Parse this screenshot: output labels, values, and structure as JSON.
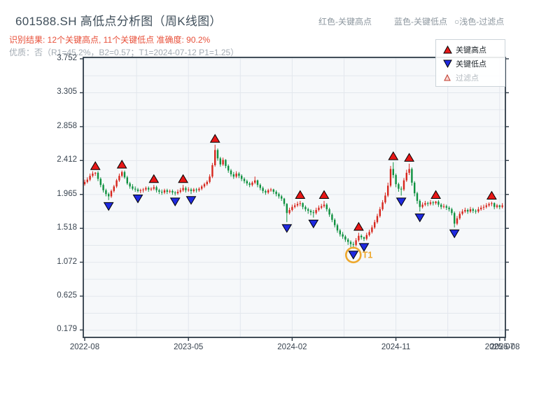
{
  "header": {
    "title": "601588.SH 高低点分析图（周K线图）",
    "result_line": "识别结果: 12个关键高点, 11个关键低点  准确度: 90.2%",
    "quality_line": "优质：否（R1=45.2%，B2=0.57；T1=2024-07-12 P1=1.25）",
    "top_legend": [
      {
        "label": "红色-关键高点"
      },
      {
        "label": "蓝色-关键低点"
      },
      {
        "label": "○浅色-过滤点"
      }
    ]
  },
  "legend_box": {
    "items": [
      {
        "icon": "triangle-up-icon",
        "label": "关键高点",
        "muted": false
      },
      {
        "icon": "triangle-down-icon",
        "label": "关键低点",
        "muted": false
      },
      {
        "icon": "triangle-hollow-icon",
        "label": "过滤点",
        "muted": true
      }
    ]
  },
  "colors": {
    "up": "#d7261d",
    "down": "#0f9140",
    "key_high": "#e81717",
    "key_low": "#1f2ae0",
    "marker_edge": "#000000",
    "filtered_fill": "#f6d6d2",
    "filtered_edge": "#c0392b",
    "annotation": "#eda82e",
    "grid": "#e3e7ed",
    "plot_bg": "#f6f8fa",
    "spine": "#2e3b47",
    "tick_label": "#38434f"
  },
  "chart_data": {
    "type": "candlestick",
    "title": "601588.SH 高低点分析图（周K线图）",
    "frequency": "weekly",
    "start_date": "2022-08-05",
    "ylim": [
      0.08,
      3.77
    ],
    "y_ticks": [
      3.752,
      3.305,
      2.858,
      2.412,
      1.965,
      1.518,
      1.072,
      0.625,
      0.179
    ],
    "x_ticks": [
      {
        "label": "2022-08",
        "week": 0
      },
      {
        "label": "2023-05",
        "week": 39
      },
      {
        "label": "2024-02",
        "week": 78
      },
      {
        "label": "2024-11",
        "week": 117
      },
      {
        "label": "2025-07",
        "week": 156
      },
      {
        "label": "2025-08",
        "week": 158
      }
    ],
    "grid_weeks": [
      19.5,
      39,
      58.5,
      78,
      97.5,
      117,
      136.5,
      156
    ],
    "key_high_weeks": [
      4,
      14,
      26,
      37,
      49,
      81,
      90,
      103,
      116,
      122,
      132,
      153
    ],
    "key_low_weeks": [
      9,
      20,
      34,
      40,
      76,
      86,
      101,
      105,
      119,
      126,
      139
    ],
    "annotation": {
      "label": "T1",
      "week": 101,
      "price": 1.25,
      "date": "2024-07-12"
    },
    "candles": [
      [
        2.1,
        2.16,
        2.08,
        2.13
      ],
      [
        2.13,
        2.19,
        2.11,
        2.16
      ],
      [
        2.16,
        2.24,
        2.14,
        2.21
      ],
      [
        2.21,
        2.27,
        2.19,
        2.24
      ],
      [
        2.24,
        2.26,
        2.21,
        2.25
      ],
      [
        2.25,
        2.27,
        2.14,
        2.17
      ],
      [
        2.17,
        2.19,
        2.06,
        2.09
      ],
      [
        2.09,
        2.11,
        1.99,
        2.02
      ],
      [
        2.02,
        2.04,
        1.94,
        1.97
      ],
      [
        1.97,
        1.99,
        1.89,
        1.94
      ],
      [
        1.94,
        2.03,
        1.92,
        2.01
      ],
      [
        2.01,
        2.09,
        1.99,
        2.07
      ],
      [
        2.07,
        2.17,
        2.05,
        2.15
      ],
      [
        2.15,
        2.24,
        2.13,
        2.21
      ],
      [
        2.21,
        2.28,
        2.19,
        2.26
      ],
      [
        2.26,
        2.28,
        2.17,
        2.19
      ],
      [
        2.19,
        2.21,
        2.09,
        2.11
      ],
      [
        2.11,
        2.13,
        2.04,
        2.07
      ],
      [
        2.07,
        2.1,
        2.02,
        2.04
      ],
      [
        2.04,
        2.07,
        2.0,
        2.03
      ],
      [
        2.03,
        2.05,
        1.99,
        2.01
      ],
      [
        2.01,
        2.04,
        1.98,
        2.02
      ],
      [
        2.02,
        2.05,
        1.99,
        2.03
      ],
      [
        2.03,
        2.07,
        2.01,
        2.05
      ],
      [
        2.05,
        2.07,
        2.0,
        2.03
      ],
      [
        2.03,
        2.06,
        2.01,
        2.04
      ],
      [
        2.04,
        2.09,
        2.02,
        2.06
      ],
      [
        2.06,
        2.08,
        1.99,
        2.02
      ],
      [
        2.02,
        2.04,
        1.97,
        2.0
      ],
      [
        2.0,
        2.03,
        1.96,
        1.99
      ],
      [
        1.99,
        2.04,
        1.97,
        2.02
      ],
      [
        2.02,
        2.04,
        1.97,
        2.0
      ],
      [
        2.0,
        2.03,
        1.98,
        2.01
      ],
      [
        2.01,
        2.03,
        1.96,
        1.99
      ],
      [
        1.99,
        2.01,
        1.95,
        1.98
      ],
      [
        1.98,
        2.03,
        1.96,
        2.0
      ],
      [
        2.0,
        2.05,
        1.98,
        2.02
      ],
      [
        2.02,
        2.09,
        2.0,
        2.05
      ],
      [
        2.05,
        2.07,
        1.99,
        2.02
      ],
      [
        2.02,
        2.06,
        2.0,
        2.03
      ],
      [
        2.03,
        2.05,
        1.97,
        2.01
      ],
      [
        2.01,
        2.05,
        1.99,
        2.03
      ],
      [
        2.03,
        2.05,
        1.99,
        2.02
      ],
      [
        2.02,
        2.06,
        2.0,
        2.04
      ],
      [
        2.04,
        2.09,
        2.02,
        2.07
      ],
      [
        2.07,
        2.12,
        2.05,
        2.1
      ],
      [
        2.1,
        2.15,
        2.08,
        2.13
      ],
      [
        2.13,
        2.23,
        2.11,
        2.2
      ],
      [
        2.2,
        2.38,
        2.18,
        2.35
      ],
      [
        2.35,
        2.62,
        2.33,
        2.55
      ],
      [
        2.55,
        2.57,
        2.41,
        2.44
      ],
      [
        2.44,
        2.46,
        2.33,
        2.36
      ],
      [
        2.36,
        2.45,
        2.34,
        2.42
      ],
      [
        2.42,
        2.43,
        2.31,
        2.34
      ],
      [
        2.34,
        2.36,
        2.25,
        2.28
      ],
      [
        2.28,
        2.3,
        2.2,
        2.23
      ],
      [
        2.23,
        2.26,
        2.17,
        2.2
      ],
      [
        2.2,
        2.27,
        2.18,
        2.24
      ],
      [
        2.24,
        2.26,
        2.18,
        2.21
      ],
      [
        2.21,
        2.23,
        2.14,
        2.17
      ],
      [
        2.17,
        2.19,
        2.11,
        2.14
      ],
      [
        2.14,
        2.16,
        2.08,
        2.11
      ],
      [
        2.11,
        2.13,
        2.06,
        2.09
      ],
      [
        2.09,
        2.14,
        2.07,
        2.12
      ],
      [
        2.12,
        2.2,
        2.1,
        2.15
      ],
      [
        2.15,
        2.16,
        2.06,
        2.09
      ],
      [
        2.09,
        2.11,
        2.02,
        2.05
      ],
      [
        2.05,
        2.07,
        1.98,
        2.01
      ],
      [
        2.01,
        2.03,
        1.96,
        1.99
      ],
      [
        1.99,
        2.04,
        1.97,
        2.02
      ],
      [
        2.02,
        2.05,
        2.0,
        2.03
      ],
      [
        2.03,
        2.04,
        1.97,
        2.0
      ],
      [
        2.0,
        2.02,
        1.94,
        1.97
      ],
      [
        1.97,
        1.99,
        1.91,
        1.94
      ],
      [
        1.94,
        1.96,
        1.88,
        1.91
      ],
      [
        1.91,
        1.92,
        1.81,
        1.84
      ],
      [
        1.84,
        1.85,
        1.6,
        1.72
      ],
      [
        1.72,
        1.79,
        1.7,
        1.76
      ],
      [
        1.76,
        1.83,
        1.74,
        1.8
      ],
      [
        1.8,
        1.85,
        1.78,
        1.82
      ],
      [
        1.82,
        1.87,
        1.8,
        1.84
      ],
      [
        1.84,
        1.88,
        1.81,
        1.85
      ],
      [
        1.85,
        1.86,
        1.77,
        1.8
      ],
      [
        1.8,
        1.82,
        1.74,
        1.77
      ],
      [
        1.77,
        1.79,
        1.71,
        1.75
      ],
      [
        1.75,
        1.77,
        1.69,
        1.73
      ],
      [
        1.73,
        1.76,
        1.66,
        1.72
      ],
      [
        1.72,
        1.79,
        1.7,
        1.76
      ],
      [
        1.76,
        1.82,
        1.74,
        1.79
      ],
      [
        1.79,
        1.84,
        1.77,
        1.81
      ],
      [
        1.81,
        1.88,
        1.79,
        1.83
      ],
      [
        1.83,
        1.85,
        1.74,
        1.77
      ],
      [
        1.77,
        1.79,
        1.67,
        1.7
      ],
      [
        1.7,
        1.72,
        1.6,
        1.63
      ],
      [
        1.63,
        1.65,
        1.53,
        1.56
      ],
      [
        1.56,
        1.58,
        1.46,
        1.49
      ],
      [
        1.49,
        1.51,
        1.41,
        1.44
      ],
      [
        1.44,
        1.47,
        1.38,
        1.41
      ],
      [
        1.41,
        1.43,
        1.34,
        1.37
      ],
      [
        1.37,
        1.39,
        1.3,
        1.34
      ],
      [
        1.34,
        1.36,
        1.27,
        1.31
      ],
      [
        1.31,
        1.34,
        1.25,
        1.3
      ],
      [
        1.3,
        1.39,
        1.28,
        1.36
      ],
      [
        1.36,
        1.46,
        1.34,
        1.42
      ],
      [
        1.42,
        1.44,
        1.37,
        1.4
      ],
      [
        1.4,
        1.41,
        1.35,
        1.38
      ],
      [
        1.38,
        1.46,
        1.36,
        1.43
      ],
      [
        1.43,
        1.5,
        1.41,
        1.47
      ],
      [
        1.47,
        1.56,
        1.45,
        1.53
      ],
      [
        1.53,
        1.63,
        1.51,
        1.6
      ],
      [
        1.6,
        1.71,
        1.58,
        1.68
      ],
      [
        1.68,
        1.8,
        1.66,
        1.77
      ],
      [
        1.77,
        1.89,
        1.75,
        1.86
      ],
      [
        1.86,
        1.99,
        1.84,
        1.95
      ],
      [
        1.95,
        2.12,
        1.93,
        2.08
      ],
      [
        2.08,
        2.34,
        2.06,
        2.3
      ],
      [
        2.3,
        2.39,
        2.18,
        2.22
      ],
      [
        2.22,
        2.24,
        2.06,
        2.1
      ],
      [
        2.1,
        2.12,
        2.0,
        2.04
      ],
      [
        2.04,
        2.07,
        1.95,
        2.03
      ],
      [
        2.03,
        2.18,
        2.01,
        2.15
      ],
      [
        2.15,
        2.29,
        2.13,
        2.25
      ],
      [
        2.25,
        2.37,
        2.22,
        2.3
      ],
      [
        2.3,
        2.32,
        2.08,
        2.12
      ],
      [
        2.12,
        2.14,
        1.94,
        1.98
      ],
      [
        1.98,
        2.0,
        1.84,
        1.88
      ],
      [
        1.88,
        1.9,
        1.74,
        1.8
      ],
      [
        1.8,
        1.86,
        1.78,
        1.83
      ],
      [
        1.83,
        1.88,
        1.81,
        1.85
      ],
      [
        1.85,
        1.87,
        1.81,
        1.84
      ],
      [
        1.84,
        1.89,
        1.82,
        1.86
      ],
      [
        1.86,
        1.88,
        1.82,
        1.85
      ],
      [
        1.85,
        1.88,
        1.83,
        1.87
      ],
      [
        1.87,
        1.89,
        1.8,
        1.83
      ],
      [
        1.83,
        1.85,
        1.77,
        1.8
      ],
      [
        1.8,
        1.84,
        1.78,
        1.81
      ],
      [
        1.81,
        1.83,
        1.76,
        1.79
      ],
      [
        1.79,
        1.81,
        1.74,
        1.77
      ],
      [
        1.77,
        1.79,
        1.69,
        1.72
      ],
      [
        1.72,
        1.74,
        1.53,
        1.58
      ],
      [
        1.58,
        1.68,
        1.56,
        1.65
      ],
      [
        1.65,
        1.74,
        1.63,
        1.71
      ],
      [
        1.71,
        1.77,
        1.69,
        1.74
      ],
      [
        1.74,
        1.79,
        1.72,
        1.76
      ],
      [
        1.76,
        1.78,
        1.71,
        1.74
      ],
      [
        1.74,
        1.8,
        1.72,
        1.77
      ],
      [
        1.77,
        1.79,
        1.72,
        1.75
      ],
      [
        1.75,
        1.77,
        1.71,
        1.74
      ],
      [
        1.74,
        1.8,
        1.72,
        1.77
      ],
      [
        1.77,
        1.82,
        1.75,
        1.79
      ],
      [
        1.79,
        1.83,
        1.76,
        1.8
      ],
      [
        1.8,
        1.85,
        1.78,
        1.82
      ],
      [
        1.82,
        1.86,
        1.8,
        1.84
      ],
      [
        1.84,
        1.87,
        1.81,
        1.85
      ],
      [
        1.85,
        1.86,
        1.77,
        1.8
      ],
      [
        1.8,
        1.84,
        1.78,
        1.82
      ],
      [
        1.82,
        1.83,
        1.77,
        1.8
      ],
      [
        1.8,
        1.85,
        1.78,
        1.82
      ]
    ]
  }
}
